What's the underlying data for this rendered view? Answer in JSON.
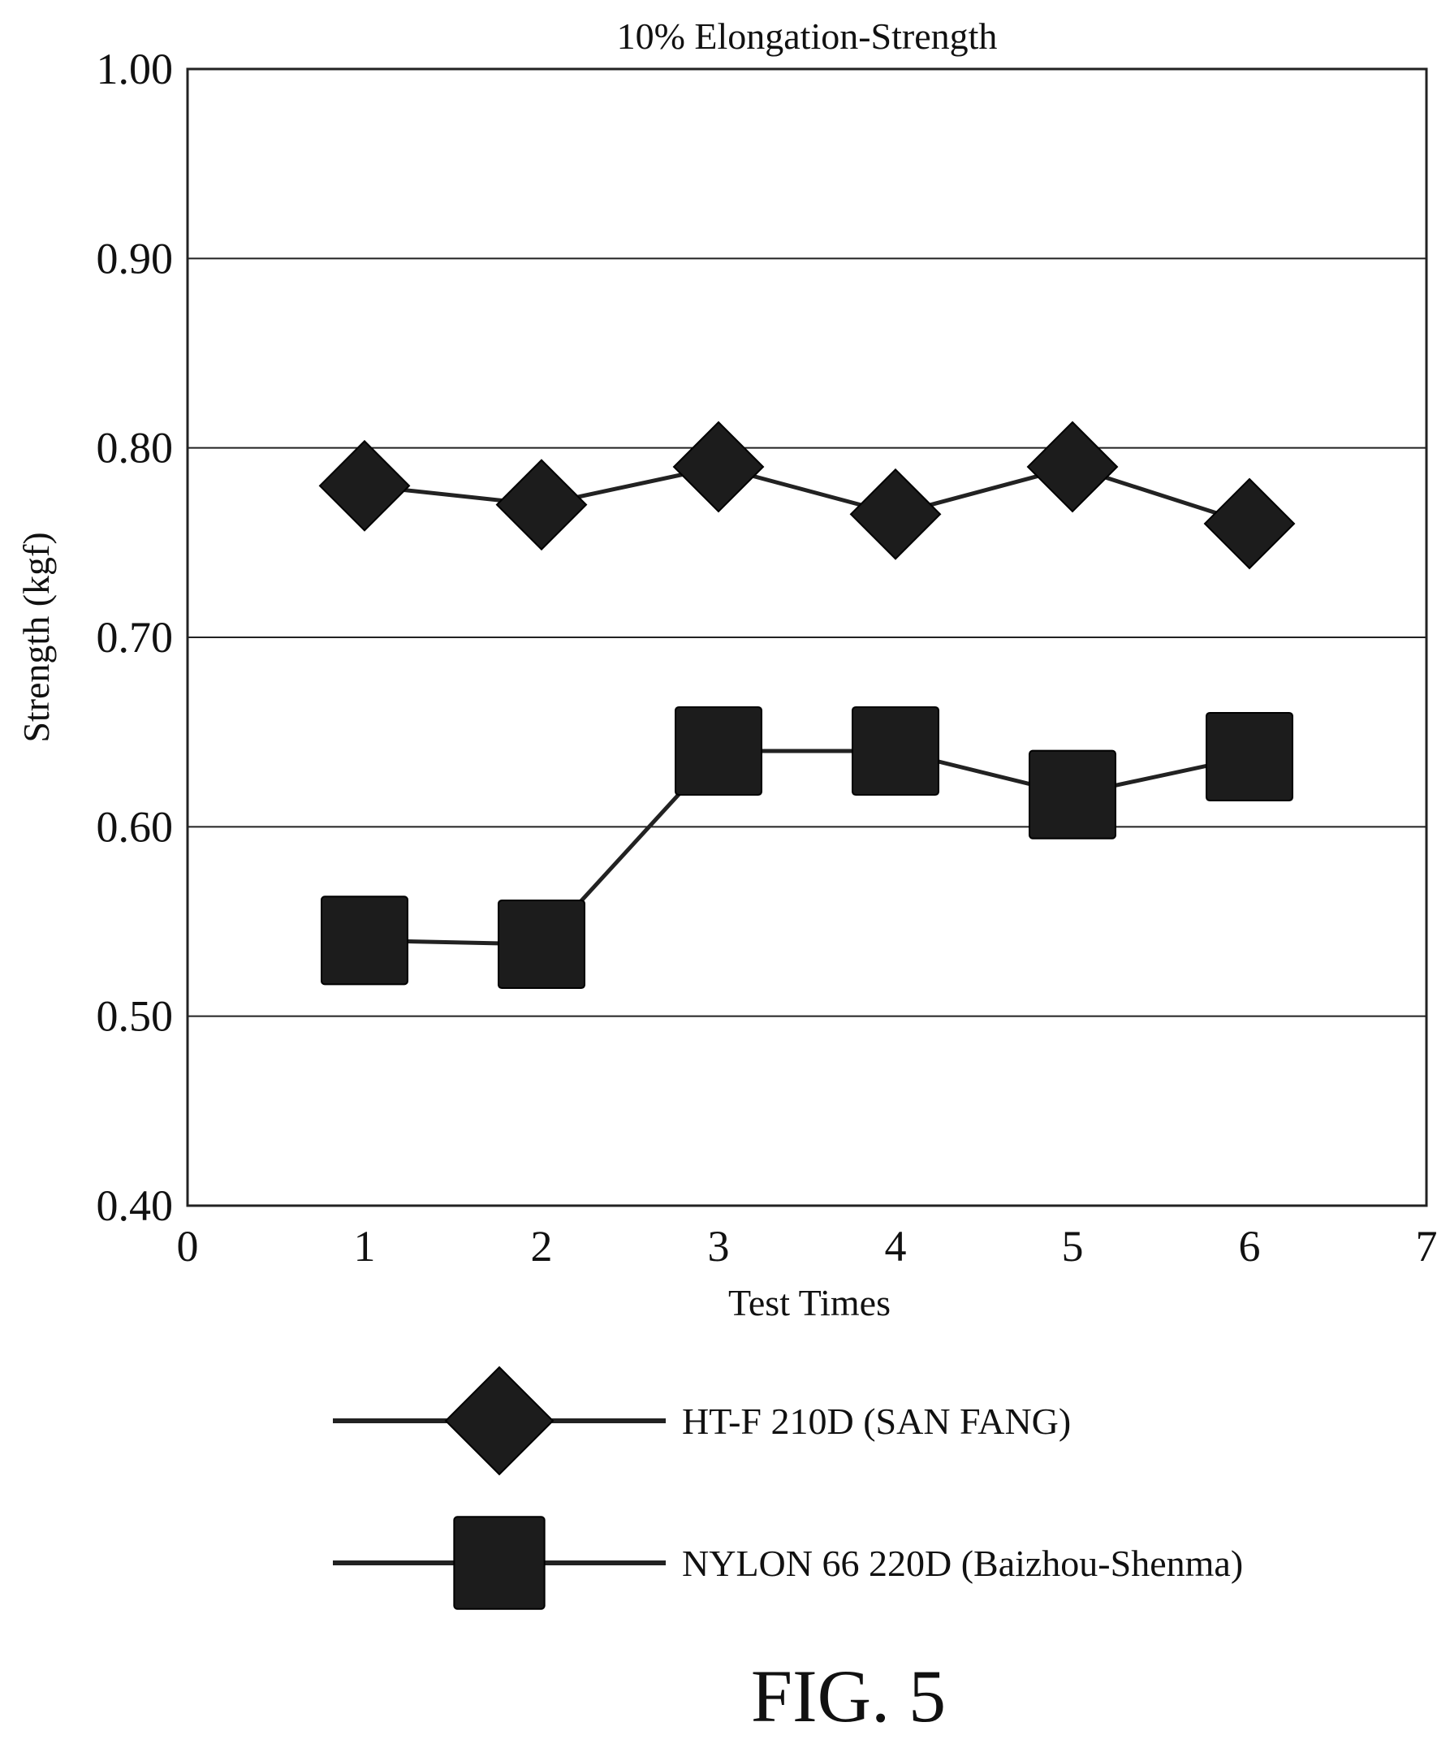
{
  "chart_data": {
    "type": "line",
    "title": "10% Elongation-Strength",
    "xlabel": "Test Times",
    "ylabel": "Strength (kgf)",
    "xlim": [
      0,
      7
    ],
    "ylim": [
      0.4,
      1.0
    ],
    "x_ticks": [
      "0",
      "1",
      "2",
      "3",
      "4",
      "5",
      "6",
      "7"
    ],
    "y_ticks": [
      "0.40",
      "0.50",
      "0.60",
      "0.70",
      "0.80",
      "0.90",
      "1.00"
    ],
    "grid": "horizontal",
    "legend_position": "bottom",
    "x": [
      1,
      2,
      3,
      4,
      5,
      6
    ],
    "series": [
      {
        "name": "HT-F 210D (SAN FANG)",
        "marker": "diamond",
        "values": [
          0.78,
          0.77,
          0.79,
          0.765,
          0.79,
          0.76
        ]
      },
      {
        "name": "NYLON 66 220D (Baizhou-Shenma)",
        "marker": "square",
        "values": [
          0.54,
          0.538,
          0.64,
          0.64,
          0.617,
          0.637
        ]
      }
    ],
    "colors": {
      "line": "#222222",
      "marker": "#1c1c1c",
      "grid": "#222222"
    }
  },
  "figure_label": "FIG. 5"
}
